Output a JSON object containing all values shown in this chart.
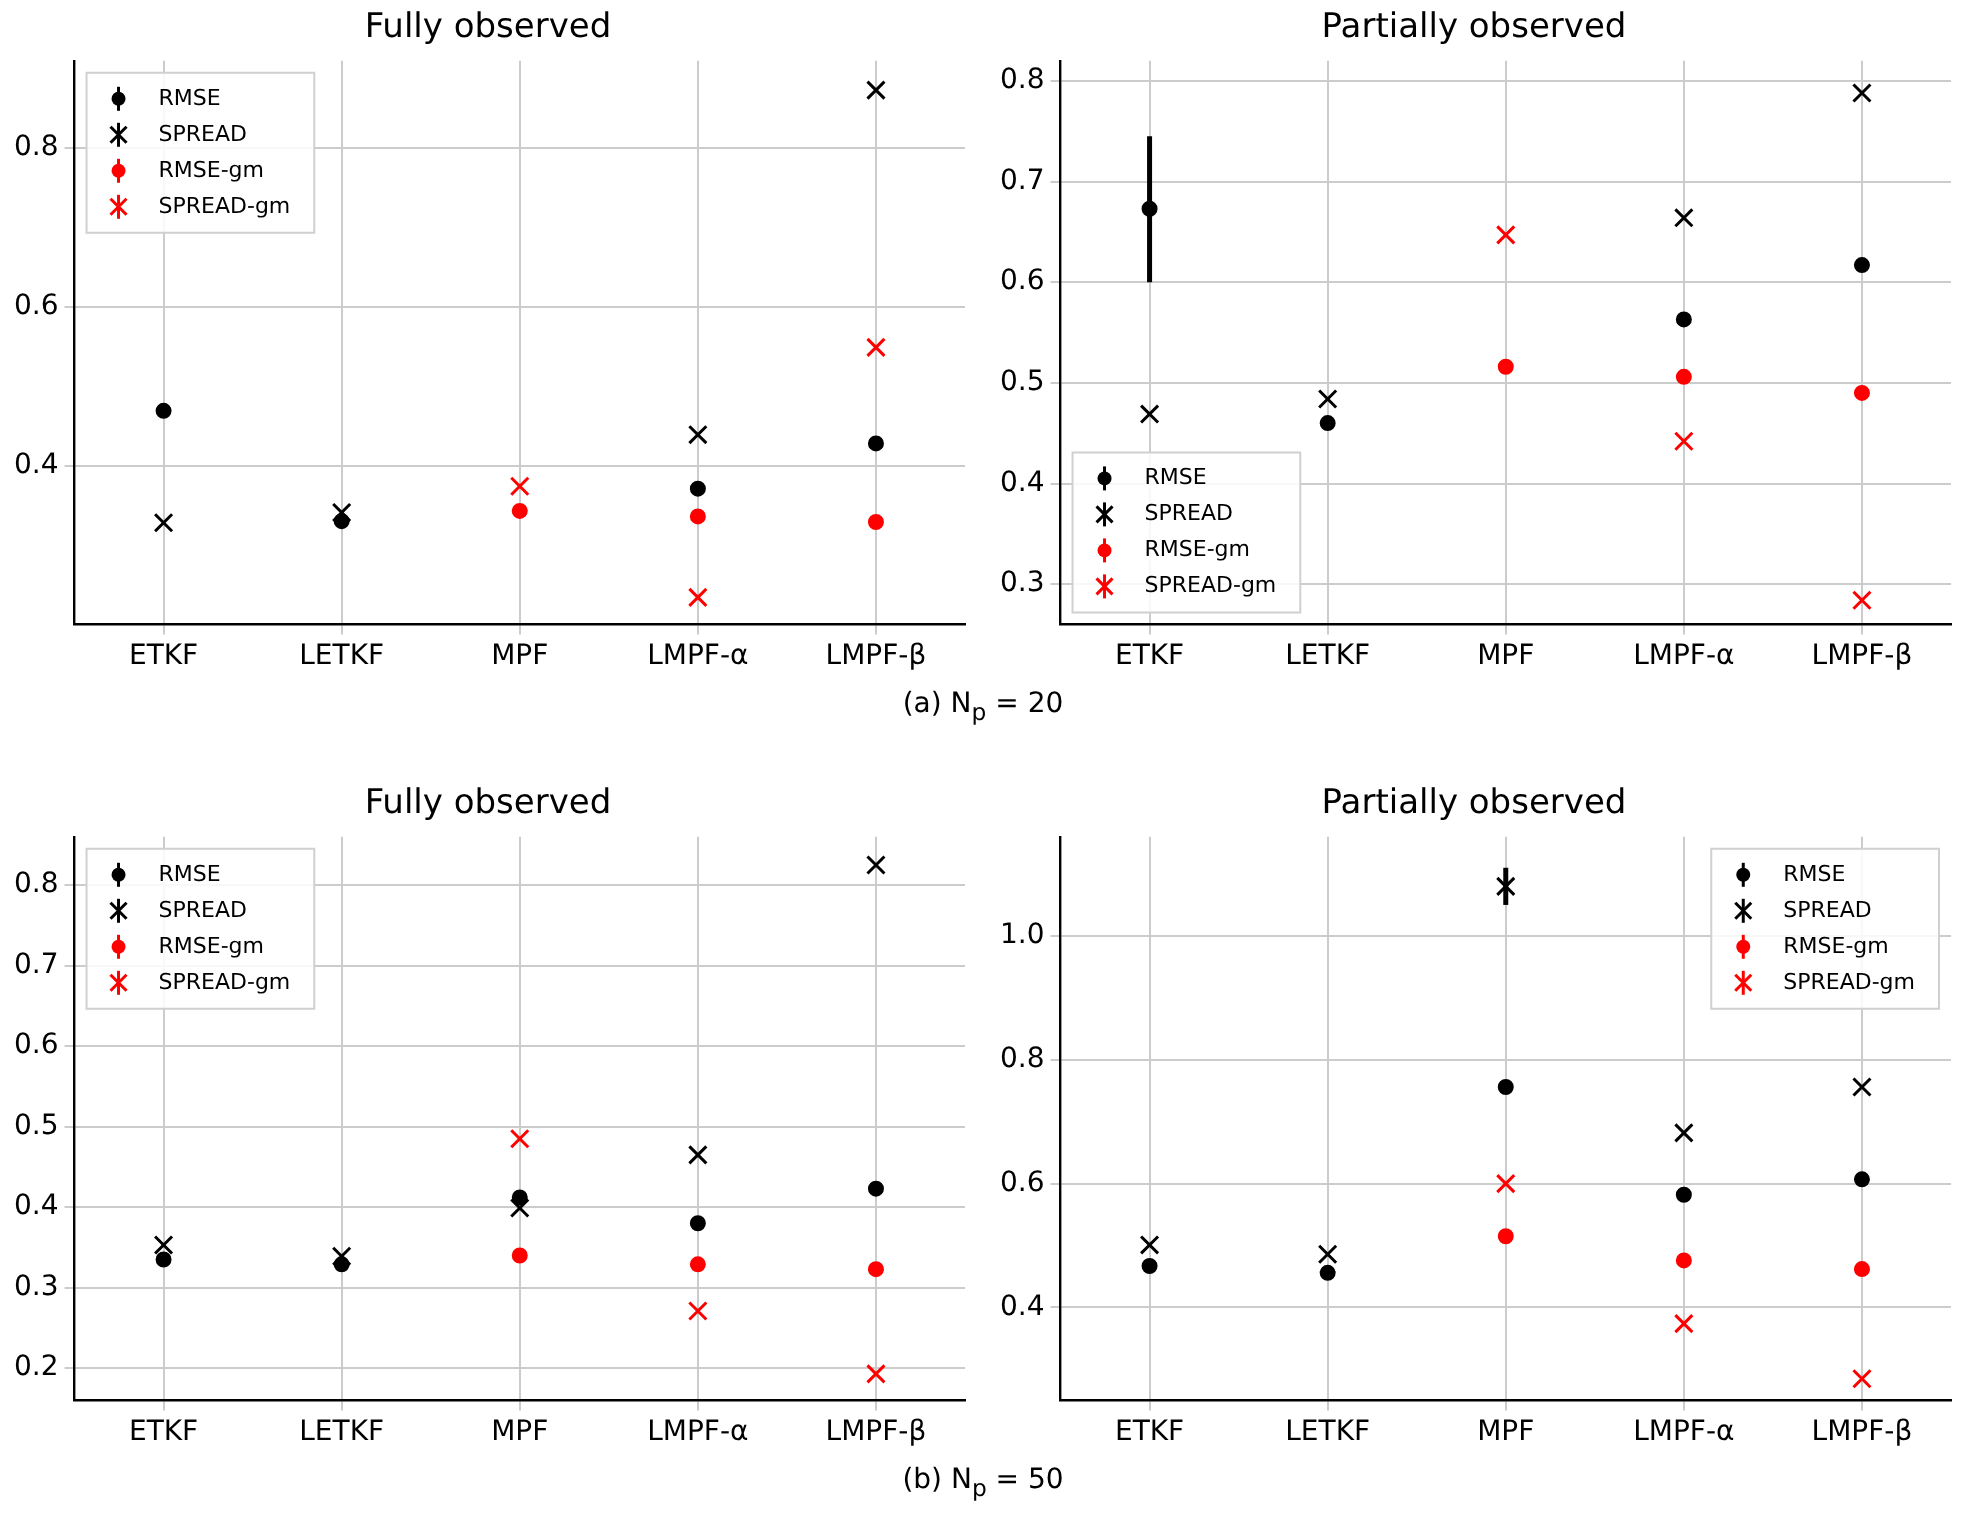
{
  "chart_data": [
    {
      "type": "scatter",
      "title": "Fully observed",
      "categories": [
        "ETKF",
        "LETKF",
        "MPF",
        "LMPF-α",
        "LMPF-β"
      ],
      "ylim": [
        0.2,
        0.91
      ],
      "yticks": [
        0.4,
        0.6,
        0.8
      ],
      "grid": true,
      "legend": "top left",
      "series": [
        {
          "name": "RMSE",
          "color": "#000000",
          "marker": "circle",
          "values": [
            0.469,
            0.33,
            null,
            0.371,
            0.428
          ]
        },
        {
          "name": "SPREAD",
          "color": "#000000",
          "marker": "cross",
          "values": [
            0.328,
            0.341,
            null,
            0.439,
            0.873
          ]
        },
        {
          "name": "RMSE-gm",
          "color": "#ff0000",
          "marker": "circle",
          "values": [
            null,
            null,
            0.343,
            0.336,
            0.329
          ]
        },
        {
          "name": "SPREAD-gm",
          "color": "#ff0000",
          "marker": "cross",
          "values": [
            null,
            null,
            0.374,
            0.234,
            0.549
          ]
        }
      ],
      "annotations": [
        "(a) N$_{p}$ = 20"
      ]
    },
    {
      "type": "scatter",
      "title": "Partially observed",
      "categories": [
        "ETKF",
        "LETKF",
        "MPF",
        "LMPF-α",
        "LMPF-β"
      ],
      "ylim": [
        0.26,
        0.82
      ],
      "yticks": [
        0.3,
        0.4,
        0.5,
        0.6,
        0.7,
        0.8
      ],
      "grid": true,
      "legend": "bottom left",
      "series": [
        {
          "name": "RMSE",
          "color": "#000000",
          "marker": "circle",
          "values": [
            0.673,
            0.46,
            null,
            0.563,
            0.617
          ],
          "errors": [
            [
              0.6,
              0.745
            ],
            null,
            null,
            null,
            null
          ]
        },
        {
          "name": "SPREAD",
          "color": "#000000",
          "marker": "cross",
          "values": [
            0.469,
            0.484,
            null,
            0.664,
            0.788
          ]
        },
        {
          "name": "RMSE-gm",
          "color": "#ff0000",
          "marker": "circle",
          "values": [
            null,
            null,
            0.516,
            0.506,
            0.49
          ]
        },
        {
          "name": "SPREAD-gm",
          "color": "#ff0000",
          "marker": "cross",
          "values": [
            null,
            null,
            0.647,
            0.442,
            0.284
          ]
        }
      ]
    },
    {
      "type": "scatter",
      "title": "Fully observed",
      "categories": [
        "ETKF",
        "LETKF",
        "MPF",
        "LMPF-α",
        "LMPF-β"
      ],
      "ylim": [
        0.16,
        0.86
      ],
      "yticks": [
        0.2,
        0.3,
        0.4,
        0.5,
        0.6,
        0.7,
        0.8
      ],
      "grid": true,
      "legend": "top left",
      "series": [
        {
          "name": "RMSE",
          "color": "#000000",
          "marker": "circle",
          "values": [
            0.335,
            0.329,
            0.412,
            0.38,
            0.423
          ]
        },
        {
          "name": "SPREAD",
          "color": "#000000",
          "marker": "cross",
          "values": [
            0.353,
            0.339,
            0.399,
            0.465,
            0.825
          ]
        },
        {
          "name": "RMSE-gm",
          "color": "#ff0000",
          "marker": "circle",
          "values": [
            null,
            null,
            0.34,
            0.329,
            0.323
          ]
        },
        {
          "name": "SPREAD-gm",
          "color": "#ff0000",
          "marker": "cross",
          "values": [
            null,
            null,
            0.485,
            0.271,
            0.193
          ]
        }
      ],
      "annotations": [
        "(b) N$_{p}$ = 50"
      ]
    },
    {
      "type": "scatter",
      "title": "Partially observed",
      "categories": [
        "ETKF",
        "LETKF",
        "MPF",
        "LMPF-α",
        "LMPF-β"
      ],
      "ylim": [
        0.25,
        1.16
      ],
      "yticks": [
        0.4,
        0.6,
        0.8,
        {
          "value": 1.0,
          "label": "1.0"
        }
      ],
      "grid": true,
      "legend": "top right",
      "series": [
        {
          "name": "RMSE",
          "color": "#000000",
          "marker": "circle",
          "values": [
            0.467,
            0.456,
            0.756,
            0.582,
            0.607
          ]
        },
        {
          "name": "SPREAD",
          "color": "#000000",
          "marker": "cross",
          "values": [
            0.501,
            0.486,
            1.08,
            0.682,
            0.756
          ],
          "errors": [
            null,
            null,
            [
              1.05,
              1.11
            ],
            null,
            null
          ]
        },
        {
          "name": "RMSE-gm",
          "color": "#ff0000",
          "marker": "circle",
          "values": [
            null,
            null,
            0.515,
            0.476,
            0.462
          ]
        },
        {
          "name": "SPREAD-gm",
          "color": "#ff0000",
          "marker": "cross",
          "values": [
            null,
            null,
            0.6,
            0.374,
            0.285
          ]
        }
      ]
    }
  ]
}
